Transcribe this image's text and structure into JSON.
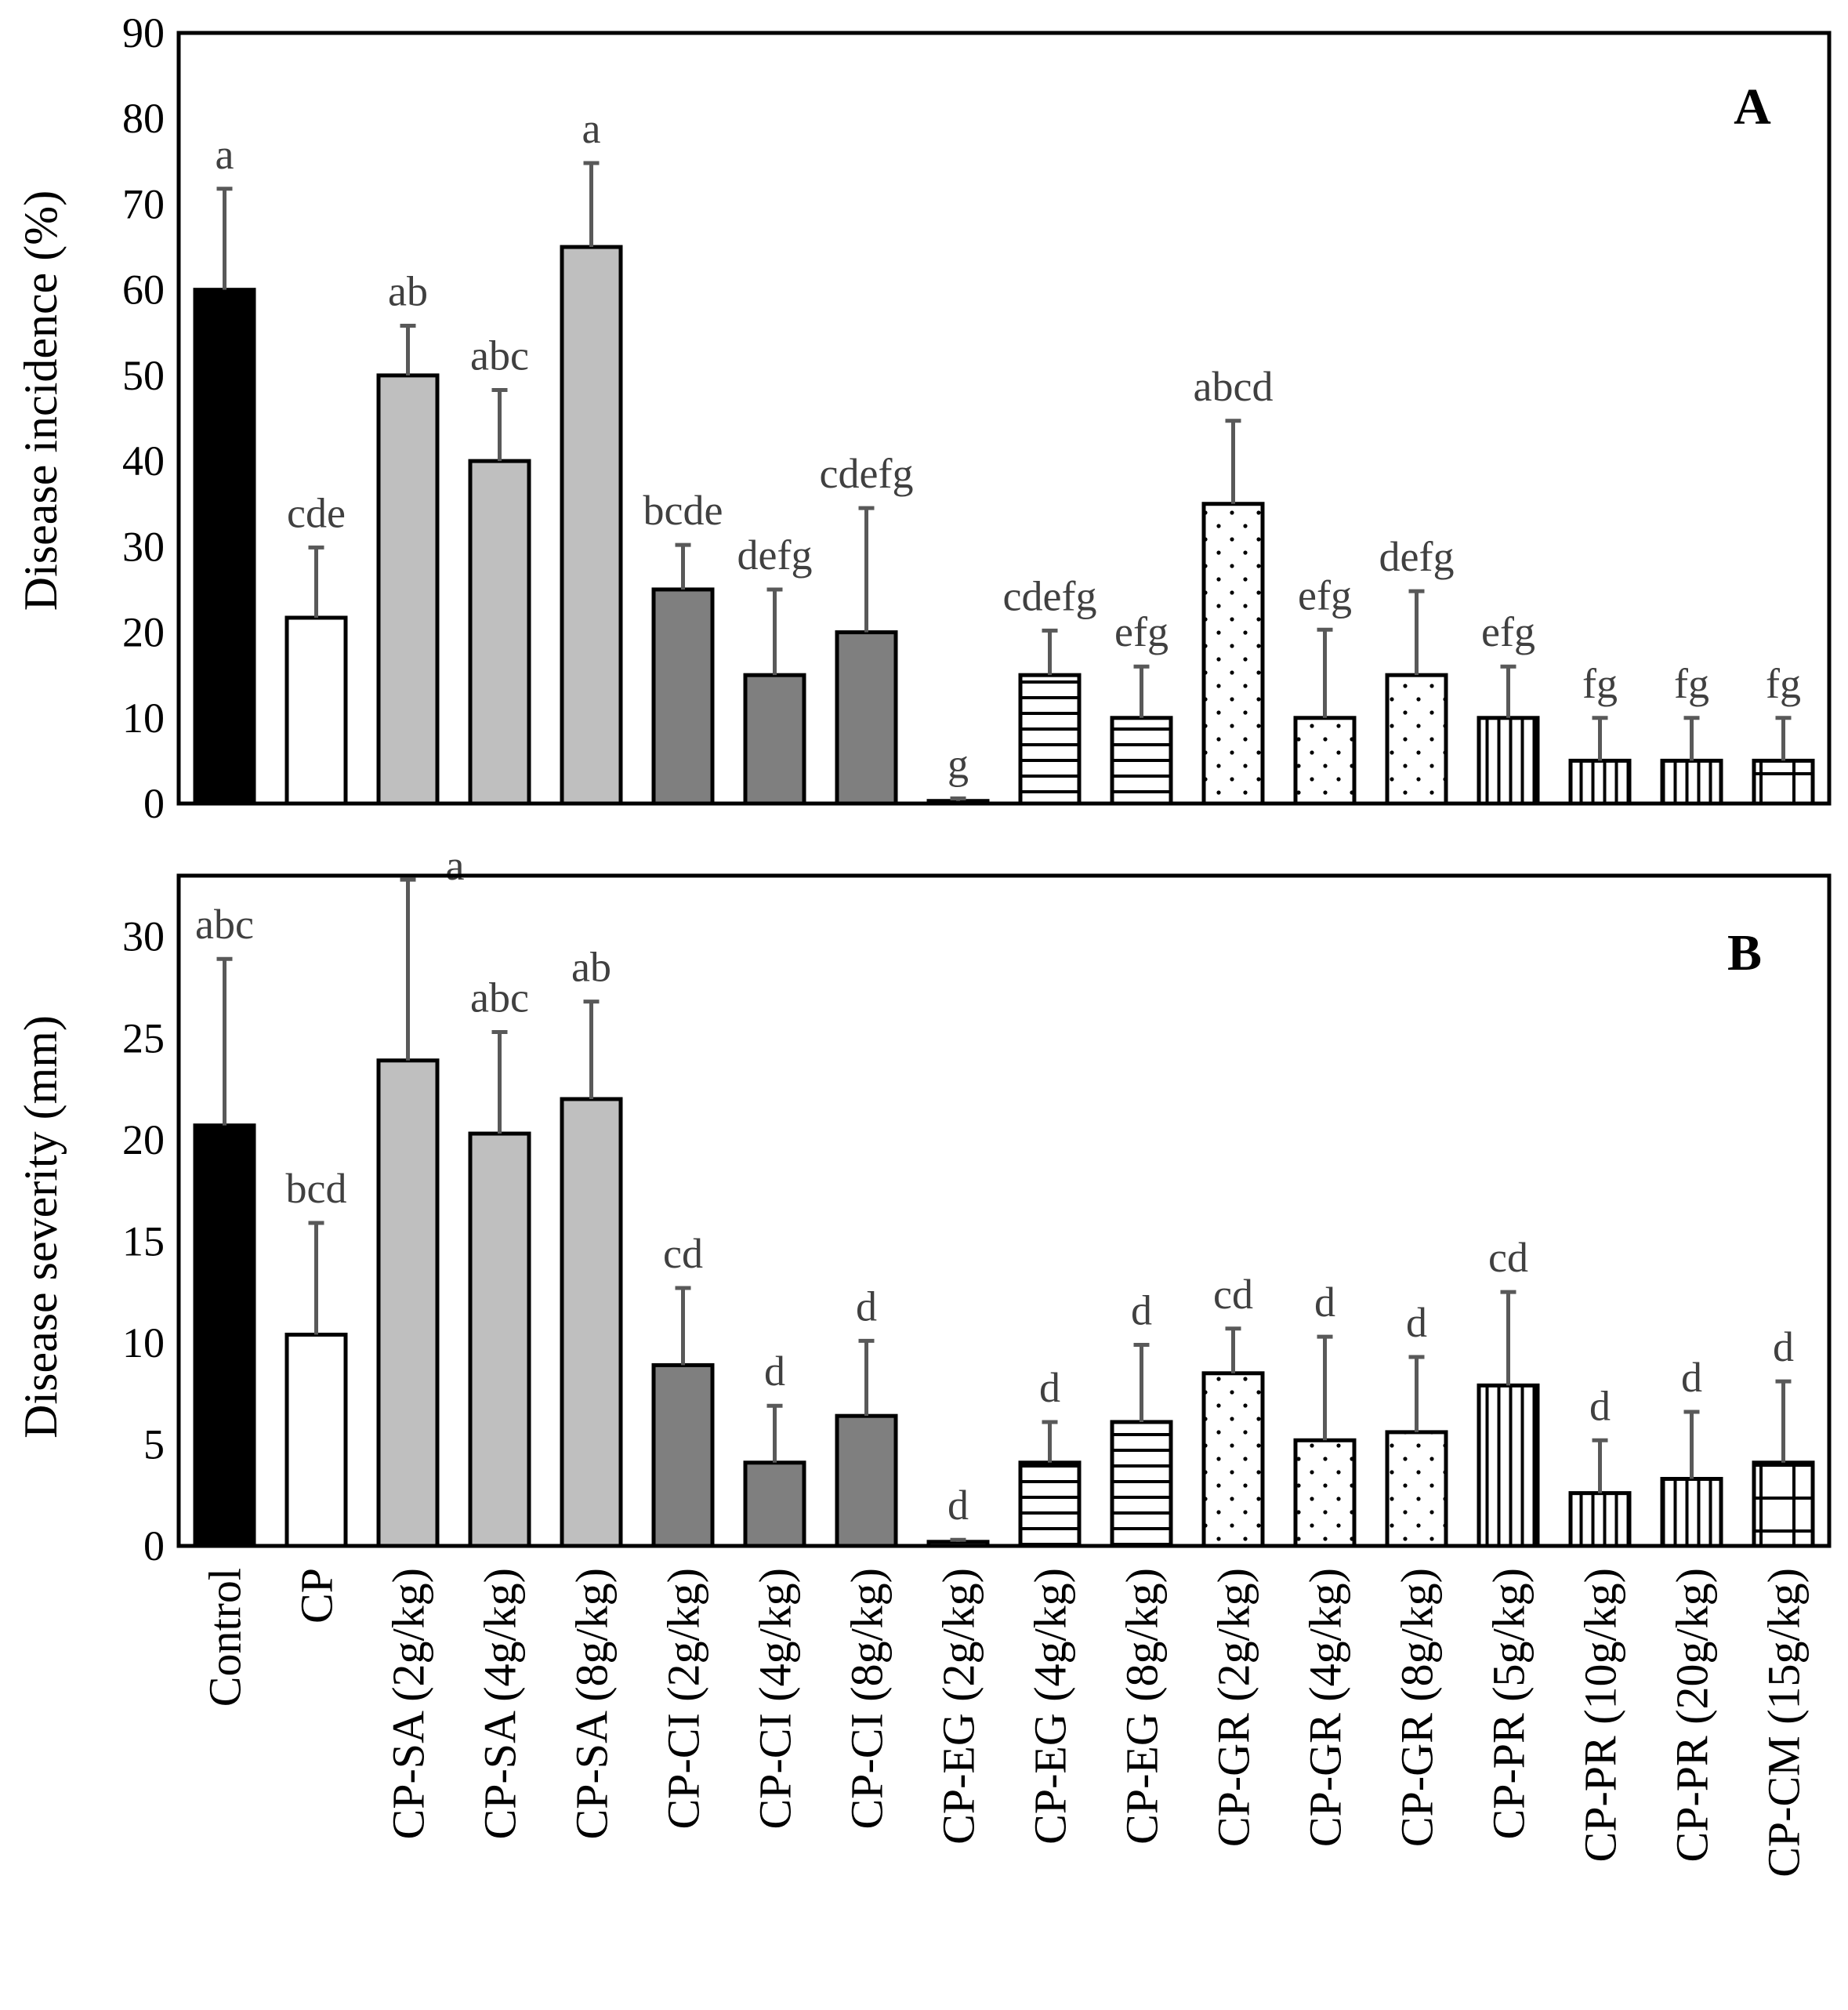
{
  "colors": {
    "control": "#000000",
    "cp": "#ffffff",
    "sa": "#bfbfbf",
    "ci": "#7f7f7f",
    "axis": "#000000",
    "errorbar": "#595959",
    "letters": "#404040"
  },
  "chart_data": [
    {
      "type": "bar",
      "panel_label": "A",
      "ylabel": "Disease incidence (%)",
      "ylim": [
        0,
        90
      ],
      "yticks": [
        0,
        10,
        20,
        30,
        40,
        50,
        60,
        70,
        80,
        90
      ],
      "grid": false,
      "categories": [
        "Control",
        "CP",
        "CP-SA (2g/kg)",
        "CP-SA (4g/kg)",
        "CP-SA (8g/kg)",
        "CP-CI (2g/kg)",
        "CP-CI (4g/kg)",
        "CP-CI (8g/kg)",
        "CP-EG (2g/kg)",
        "CP-EG (4g/kg)",
        "CP-EG (8g/kg)",
        "CP-GR (2g/kg)",
        "CP-GR (4g/kg)",
        "CP-GR (8g/kg)",
        "CP-PR (5g/kg)",
        "CP-PR (10g/kg)",
        "CP-PR (20g/kg)",
        "CP-CM (15g/kg)"
      ],
      "fills": [
        "control",
        "cp",
        "sa",
        "sa",
        "sa",
        "ci",
        "ci",
        "ci",
        "ci",
        "eg",
        "eg",
        "gr",
        "gr",
        "gr",
        "pr",
        "pr",
        "pr",
        "cm"
      ],
      "values": [
        60,
        21.7,
        50,
        40,
        65,
        25,
        15,
        20,
        0.3,
        15,
        10,
        35,
        10,
        15,
        10,
        5,
        5,
        5
      ],
      "errors": [
        11.8,
        8.2,
        5.8,
        8.3,
        9.8,
        5.2,
        10,
        14.5,
        0.3,
        5.2,
        6,
        9.7,
        10.3,
        9.8,
        6,
        5,
        5,
        5
      ],
      "letters": [
        "a",
        "cde",
        "ab",
        "abc",
        "a",
        "bcde",
        "defg",
        "cdefg",
        "g",
        "cdefg",
        "efg",
        "abcd",
        "efg",
        "defg",
        "efg",
        "fg",
        "fg",
        "fg"
      ]
    },
    {
      "type": "bar",
      "panel_label": "B",
      "ylabel": "Disease severity (mm)",
      "ylim": [
        0,
        33
      ],
      "yticks": [
        0,
        5,
        10,
        15,
        20,
        25,
        30
      ],
      "grid": false,
      "categories": [
        "Control",
        "CP",
        "CP-SA (2g/kg)",
        "CP-SA (4g/kg)",
        "CP-SA (8g/kg)",
        "CP-CI (2g/kg)",
        "CP-CI (4g/kg)",
        "CP-CI (8g/kg)",
        "CP-EG (2g/kg)",
        "CP-EG (4g/kg)",
        "CP-EG (8g/kg)",
        "CP-GR (2g/kg)",
        "CP-GR (4g/kg)",
        "CP-GR (8g/kg)",
        "CP-PR (5g/kg)",
        "CP-PR (10g/kg)",
        "CP-PR (20g/kg)",
        "CP-CM (15g/kg)"
      ],
      "fills": [
        "control",
        "cp",
        "sa",
        "sa",
        "sa",
        "ci",
        "ci",
        "ci",
        "ci",
        "eg",
        "eg",
        "gr",
        "gr",
        "gr",
        "pr",
        "pr",
        "pr",
        "cm"
      ],
      "values": [
        20.7,
        10.4,
        23.9,
        20.3,
        22,
        8.9,
        4.1,
        6.4,
        0.2,
        4.1,
        6.1,
        8.5,
        5.2,
        5.6,
        7.9,
        2.6,
        3.3,
        4.1
      ],
      "errors": [
        8.2,
        5.5,
        8.9,
        5,
        4.8,
        3.8,
        2.8,
        3.7,
        0.1,
        2,
        3.8,
        2.2,
        5.1,
        3.7,
        4.6,
        2.6,
        3.3,
        4
      ],
      "letters": [
        "abc",
        "bcd",
        "a",
        "abc",
        "ab",
        "cd",
        "d",
        "d",
        "d",
        "d",
        "d",
        "cd",
        "d",
        "d",
        "cd",
        "d",
        "d",
        "d"
      ]
    }
  ]
}
